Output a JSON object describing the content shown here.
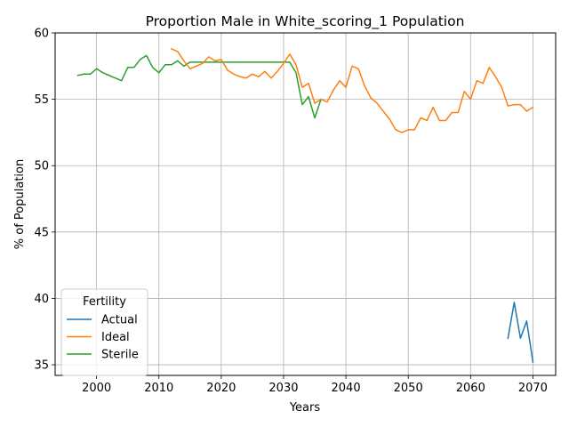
{
  "chart_data": {
    "type": "line",
    "title": "Proportion Male in White_scoring_1 Population",
    "xlabel": "Years",
    "ylabel": "% of Population",
    "xlim": [
      1993.35,
      2073.65
    ],
    "ylim": [
      34.2,
      60
    ],
    "xticks": [
      2000,
      2010,
      2020,
      2030,
      2040,
      2050,
      2060,
      2070
    ],
    "yticks": [
      35,
      40,
      45,
      50,
      55,
      60
    ],
    "grid": true,
    "legend": {
      "title": "Fertility",
      "placement": "lower-left"
    },
    "series": [
      {
        "name": "Actual",
        "color": "#1f77b4",
        "x": [
          2066,
          2067,
          2068,
          2069,
          2070
        ],
        "y": [
          37.0,
          39.7,
          37.0,
          38.3,
          35.2
        ]
      },
      {
        "name": "Ideal",
        "color": "#ff7f0e",
        "x": [
          2012,
          2013,
          2014,
          2015,
          2016,
          2017,
          2018,
          2019,
          2020,
          2021,
          2022,
          2023,
          2024,
          2025,
          2026,
          2027,
          2028,
          2029,
          2030,
          2031,
          2032,
          2033,
          2034,
          2035,
          2036,
          2037,
          2038,
          2039,
          2040,
          2041,
          2042,
          2043,
          2044,
          2045,
          2046,
          2047,
          2048,
          2049,
          2050,
          2051,
          2052,
          2053,
          2054,
          2055,
          2056,
          2057,
          2058,
          2059,
          2060,
          2061,
          2062,
          2063,
          2064,
          2065,
          2066,
          2067,
          2068,
          2069,
          2070
        ],
        "y": [
          58.8,
          58.6,
          57.9,
          57.3,
          57.5,
          57.7,
          58.2,
          57.9,
          58.0,
          57.2,
          56.9,
          56.7,
          56.6,
          56.9,
          56.7,
          57.1,
          56.6,
          57.1,
          57.7,
          58.4,
          57.6,
          55.9,
          56.2,
          54.7,
          55.0,
          54.8,
          55.7,
          56.4,
          55.9,
          57.5,
          57.3,
          56.0,
          55.1,
          54.7,
          54.1,
          53.5,
          52.7,
          52.5,
          52.7,
          52.7,
          53.6,
          53.4,
          54.4,
          53.4,
          53.4,
          54.0,
          54.0,
          55.6,
          55.0,
          56.4,
          56.2,
          57.4,
          56.7,
          55.9,
          54.5,
          54.6,
          54.6,
          54.1,
          54.4
        ]
      },
      {
        "name": "Sterile",
        "color": "#2ca02c",
        "x": [
          1997,
          1998,
          1999,
          2000,
          2001,
          2002,
          2003,
          2004,
          2005,
          2006,
          2007,
          2008,
          2009,
          2010,
          2011,
          2012,
          2013,
          2014,
          2015,
          2016,
          2017,
          2018,
          2019,
          2020,
          2021,
          2022,
          2023,
          2024,
          2025,
          2026,
          2027,
          2028,
          2029,
          2030,
          2031,
          2032,
          2033,
          2034,
          2035,
          2036
        ],
        "y": [
          56.8,
          56.9,
          56.9,
          57.3,
          57.0,
          56.8,
          56.6,
          56.4,
          57.4,
          57.4,
          58.0,
          58.3,
          57.4,
          57.0,
          57.6,
          57.6,
          57.9,
          57.5,
          57.8,
          57.8,
          57.8,
          57.8,
          57.8,
          57.8,
          57.8,
          57.8,
          57.8,
          57.8,
          57.8,
          57.8,
          57.8,
          57.8,
          57.8,
          57.8,
          57.8,
          57.0,
          54.6,
          55.2,
          53.6,
          55.0
        ]
      }
    ]
  }
}
